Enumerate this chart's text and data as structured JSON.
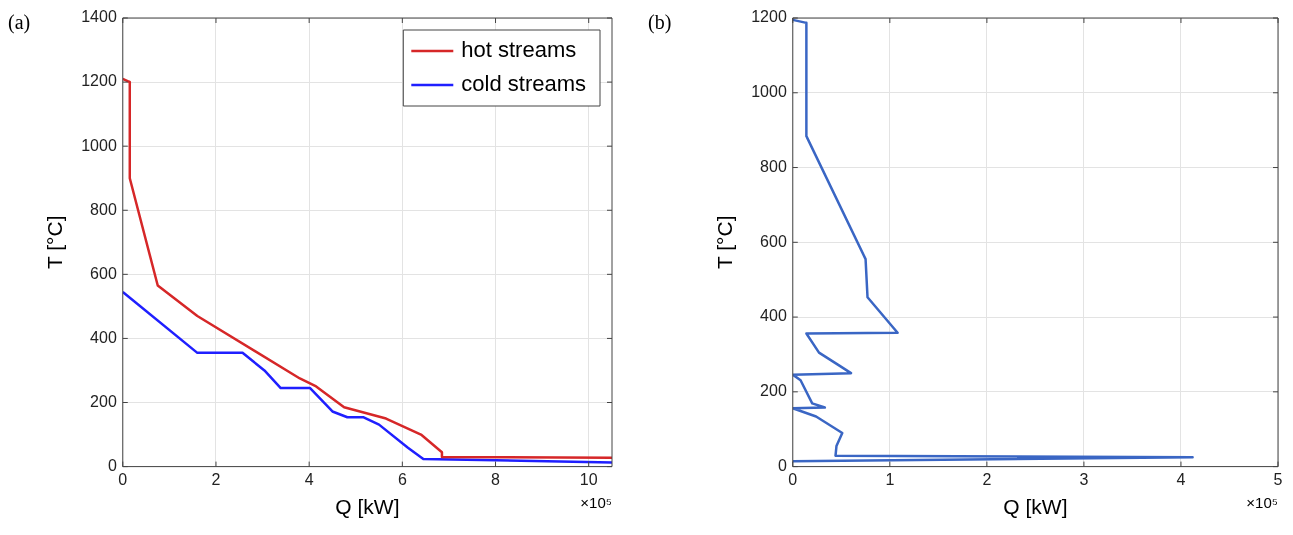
{
  "chart_data": [
    {
      "type": "line",
      "title": "(a)",
      "xlabel": "Q [kW]",
      "ylabel": "T [°C]",
      "annotations": [
        "×10⁵"
      ],
      "xlim": [
        0,
        10.5
      ],
      "xticks": [
        0,
        2,
        4,
        6,
        8,
        10
      ],
      "ylim": [
        0,
        1400
      ],
      "yticks": [
        0,
        200,
        400,
        600,
        800,
        1000,
        1200,
        1400
      ],
      "grid": true,
      "legend": "top right",
      "marker": "none",
      "line_style": "solid",
      "series": [
        {
          "name": "hot streams",
          "color": "#d62728",
          "x": [
            0,
            0.15,
            0.15,
            0.75,
            1.6,
            3.8,
            4.15,
            4.75,
            5.65,
            6.4,
            6.85,
            6.85,
            10.5
          ],
          "values": [
            1210,
            1200,
            900,
            565,
            470,
            275,
            250,
            185,
            150,
            100,
            45,
            30,
            28
          ]
        },
        {
          "name": "cold streams",
          "color": "#1f1fff",
          "x": [
            0,
            1.6,
            2.57,
            3.04,
            3.39,
            4.02,
            4.5,
            4.82,
            5.17,
            5.5,
            6.12,
            6.45,
            10.5
          ],
          "values": [
            545,
            355,
            355,
            300,
            245,
            245,
            172,
            154,
            154,
            131,
            59,
            24,
            13
          ]
        }
      ]
    },
    {
      "type": "line",
      "title": "(b)",
      "xlabel": "Q [kW]",
      "ylabel": "T [°C]",
      "annotations": [
        "×10⁵"
      ],
      "xlim": [
        0,
        5
      ],
      "xticks": [
        0,
        1,
        2,
        3,
        4,
        5
      ],
      "ylim": [
        0,
        1200
      ],
      "yticks": [
        0,
        200,
        400,
        600,
        800,
        1000,
        1200
      ],
      "grid": true,
      "marker": "none",
      "line_style": "solid",
      "series": [
        {
          "color": "#3a66c4",
          "x": [
            0,
            0.14,
            0.14,
            0.75,
            0.77,
            1.08,
            0.14,
            0.27,
            0.48,
            0.6,
            0,
            0.08,
            0.2,
            0.33,
            0,
            0.24,
            0.51,
            0.45,
            0.44,
            4.12,
            0
          ],
          "values": [
            1195,
            1187,
            884,
            555,
            453,
            358,
            356,
            305,
            270,
            250,
            246,
            231,
            169,
            158,
            156,
            134,
            90,
            55,
            29,
            25,
            14
          ]
        }
      ]
    }
  ]
}
